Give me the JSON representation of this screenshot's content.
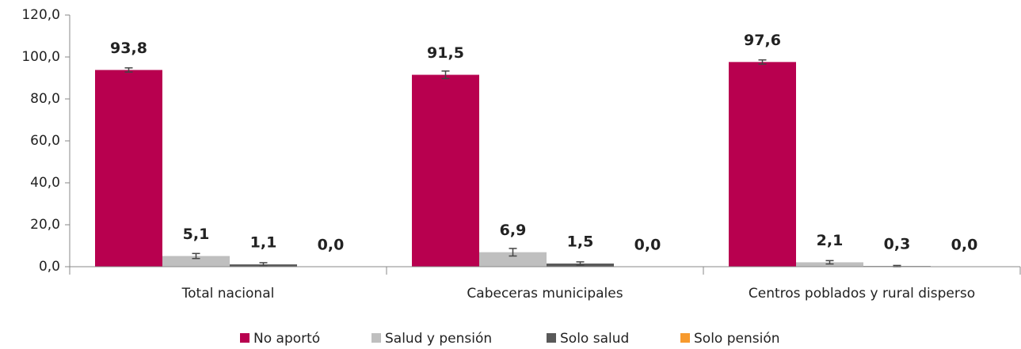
{
  "chart_data": {
    "type": "bar",
    "categories": [
      "Total nacional",
      "Cabeceras municipales",
      "Centros poblados y rural disperso"
    ],
    "series": [
      {
        "name": "No aportó",
        "color": "#b8004f",
        "values": [
          93.8,
          91.5,
          97.6
        ],
        "value_labels": [
          "93,8",
          "91,5",
          "97,6"
        ],
        "errors": [
          1.0,
          1.8,
          1.0
        ]
      },
      {
        "name": "Salud y pensión",
        "color": "#bfbfbf",
        "values": [
          5.1,
          6.9,
          2.1
        ],
        "value_labels": [
          "5,1",
          "6,9",
          "2,1"
        ],
        "errors": [
          1.2,
          1.8,
          0.8
        ]
      },
      {
        "name": "Solo salud",
        "color": "#595959",
        "values": [
          1.1,
          1.5,
          0.3
        ],
        "value_labels": [
          "1,1",
          "1,5",
          "0,3"
        ],
        "errors": [
          0.8,
          0.8,
          0.3
        ]
      },
      {
        "name": "Solo pensión",
        "color": "#f79a2e",
        "values": [
          0.0,
          0.0,
          0.0
        ],
        "value_labels": [
          "0,0",
          "0,0",
          "0,0"
        ],
        "errors": [
          null,
          null,
          null
        ]
      }
    ],
    "ylim": [
      0,
      120
    ],
    "yticks": [
      {
        "value": 0,
        "label": "0,0"
      },
      {
        "value": 20,
        "label": "20,0"
      },
      {
        "value": 40,
        "label": "40,0"
      },
      {
        "value": 60,
        "label": "60,0"
      },
      {
        "value": 80,
        "label": "80,0"
      },
      {
        "value": 100,
        "label": "100,0"
      },
      {
        "value": 120,
        "label": "120,0"
      }
    ],
    "grid": false,
    "legend": "bottom"
  }
}
